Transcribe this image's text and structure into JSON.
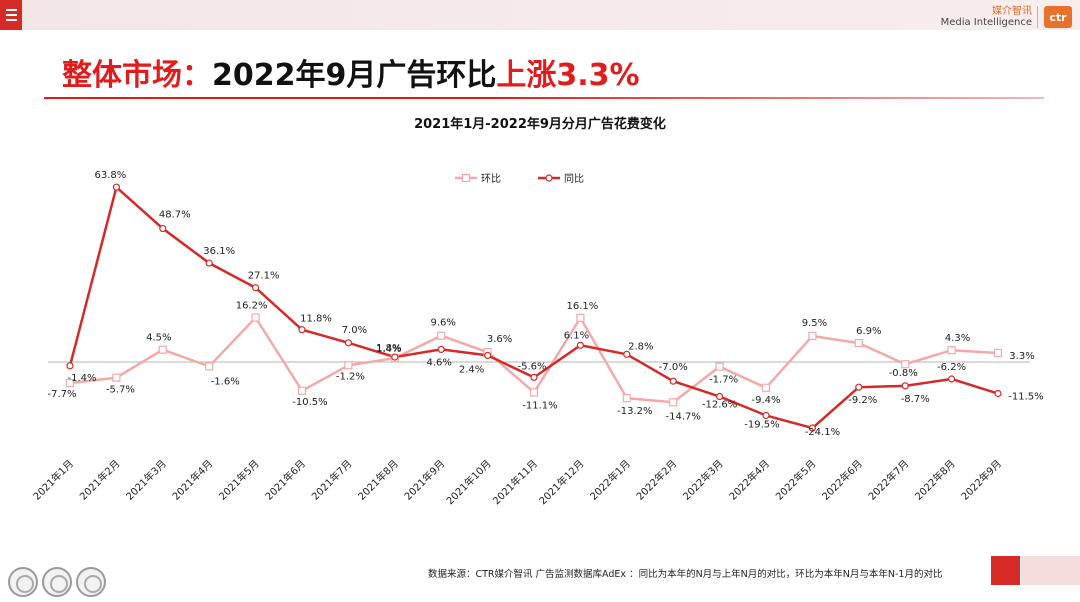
{
  "header": {
    "brand_cn": "媒介智讯",
    "brand_en": "Media Intelligence",
    "logo_text": "ctr"
  },
  "headline": {
    "part1": "整体市场：",
    "part2": "2022年9月广告环比",
    "part3": "上涨3.3%"
  },
  "footnote": "数据来源：CTR媒介智讯 广告监测数据库AdEx ：同比为本年的N月与上年N月的对比，环比为本年N月与本年N-1月的对比",
  "colors": {
    "hb": "#f4a9a9",
    "tb": "#d42a28",
    "accent": "#e21c1c"
  },
  "chart_data": {
    "type": "line",
    "title": "2021年1月-2022年9月分月广告花费变化",
    "legend_position": "top",
    "categories": [
      "2021年1月",
      "2021年2月",
      "2021年3月",
      "2021年4月",
      "2021年5月",
      "2021年6月",
      "2021年7月",
      "2021年8月",
      "2021年9月",
      "2021年10月",
      "2021年11月",
      "2021年12月",
      "2022年1月",
      "2022年2月",
      "2022年3月",
      "2022年4月",
      "2022年5月",
      "2022年6月",
      "2022年7月",
      "2022年8月",
      "2022年9月"
    ],
    "series": [
      {
        "name": "环比",
        "values": [
          -7.7,
          -5.7,
          4.5,
          -1.6,
          16.2,
          -10.5,
          -1.2,
          1.4,
          9.6,
          3.6,
          -11.1,
          16.1,
          -13.2,
          -14.7,
          -1.7,
          -9.4,
          9.5,
          6.9,
          -0.8,
          4.3,
          3.3
        ],
        "labels": [
          "-7.7%",
          "-5.7%",
          "4.5%",
          "-1.6%",
          "16.2%",
          "-10.5%",
          "-1.2%",
          "1.4%",
          "9.6%",
          "3.6%",
          "-11.1%",
          "16.1%",
          "-13.2%",
          "-14.7%",
          "-1.7%",
          "-9.4%",
          "9.5%",
          "6.9%",
          "-0.8%",
          "4.3%",
          "3.3%"
        ]
      },
      {
        "name": "同比",
        "values": [
          -1.4,
          63.8,
          48.7,
          36.1,
          27.1,
          11.8,
          7.0,
          1.8,
          4.6,
          2.4,
          -5.6,
          6.1,
          2.8,
          -7.0,
          -12.6,
          -19.5,
          -24.1,
          -9.2,
          -8.7,
          -6.2,
          -11.5
        ],
        "labels": [
          "-1.4%",
          "63.8%",
          "48.7%",
          "36.1%",
          "27.1%",
          "11.8%",
          "7.0%",
          "1.8%",
          "4.6%",
          "2.4%",
          "-5.6%",
          "6.1%",
          "2.8%",
          "-7.0%",
          "-12.6%",
          "-19.5%",
          "-24.1%",
          "-9.2%",
          "-8.7%",
          "-6.2%",
          "-11.5%"
        ]
      }
    ]
  }
}
